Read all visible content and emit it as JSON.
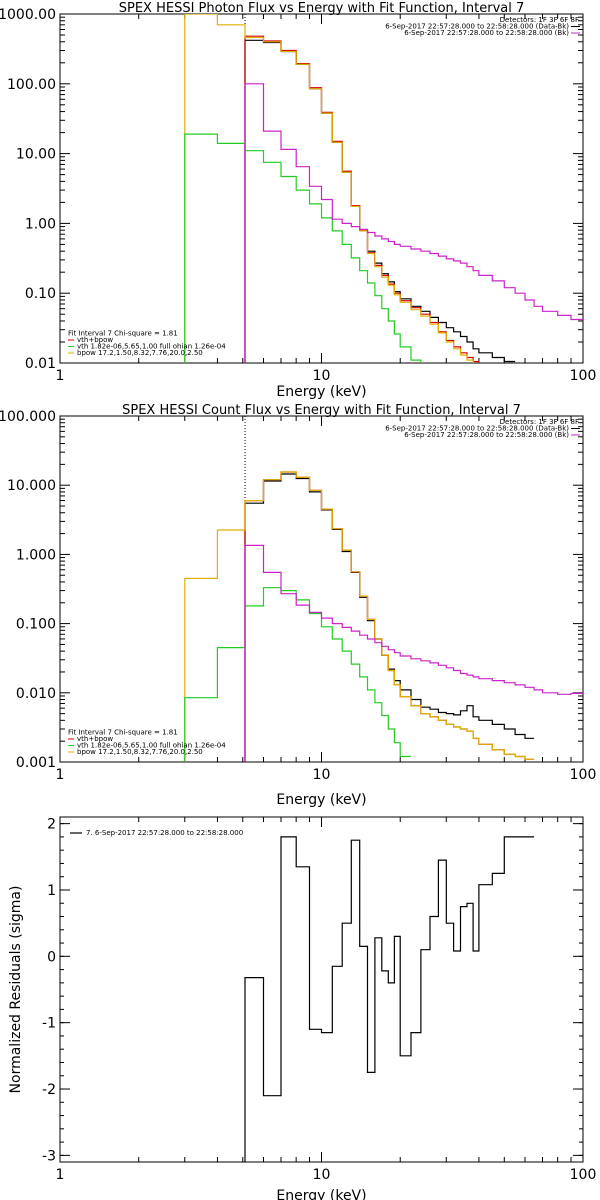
{
  "colors": {
    "data": "#000000",
    "fit": "#d40000",
    "vth": "#22cc22",
    "bpow": "#e0b000",
    "background": "#cc22cc"
  },
  "chart_data": [
    {
      "type": "line",
      "title": "SPEX HESSI Photon Flux vs Energy with Fit Function, Interval 7",
      "xlabel": "Energy (keV)",
      "ylabel": "",
      "xscale": "log",
      "yscale": "log",
      "xlim": [
        1,
        100
      ],
      "ylim": [
        0.01,
        1000
      ],
      "xticks": [
        {
          "v": 1,
          "label": "1"
        },
        {
          "v": 10,
          "label": "10"
        },
        {
          "v": 100,
          "label": "100"
        }
      ],
      "yticks": [
        {
          "v": 1000,
          "label": "1000.00"
        },
        {
          "v": 100,
          "label": "100.00"
        },
        {
          "v": 10,
          "label": "10.00"
        },
        {
          "v": 1,
          "label": "1.00"
        },
        {
          "v": 0.1,
          "label": "0.10"
        },
        {
          "v": 0.01,
          "label": "0.01"
        }
      ],
      "vline": 5.1,
      "legend_top": [
        {
          "text": "Detectors: 1F 3F 6F 8F",
          "color": ""
        },
        {
          "text": "6-Sep-2017 22:57:28.000 to 22:58:28.000 (Data-Bk)",
          "color": "#000000"
        },
        {
          "text": "6-Sep-2017 22:57:28.000 to 22:58:28.000 (Bk)",
          "color": "#cc22cc"
        }
      ],
      "legend_bottom": [
        {
          "text": "Fit Interval 7   Chi-square = 1.81",
          "color": ""
        },
        {
          "text": "vth+bpow",
          "color": "#d40000"
        },
        {
          "text": "vth 1.82e-06,5.65,1.00   full ohian 1.26e-04",
          "color": "#22cc22"
        },
        {
          "text": "bpow 17.2,1.50,8.32,7.76,20.0,2.50",
          "color": "#e0b000"
        }
      ],
      "edges": [
        3,
        4,
        5.1,
        6,
        7,
        8,
        9,
        10,
        11,
        12,
        13,
        14,
        15,
        16,
        17,
        18,
        19,
        20,
        22,
        24,
        26,
        28,
        30,
        32,
        34,
        36,
        38,
        40,
        45,
        50,
        55,
        60,
        65,
        70,
        80,
        90,
        100
      ],
      "series": [
        {
          "key": "data",
          "color": "#000000",
          "start": 5.1,
          "values": [
            420,
            390,
            290,
            190,
            85,
            38,
            14.5,
            5.4,
            1.75,
            0.78,
            0.4,
            0.27,
            0.19,
            0.145,
            0.105,
            0.083,
            0.065,
            0.055,
            0.045,
            0.038,
            0.032,
            0.028,
            0.024,
            0.02,
            0.016,
            0.014,
            0.012,
            0.0105
          ]
        },
        {
          "key": "fit",
          "color": "#d40000",
          "start": 5.1,
          "values": [
            480,
            410,
            300,
            195,
            88,
            39,
            15,
            5.6,
            1.8,
            0.8,
            0.38,
            0.25,
            0.18,
            0.135,
            0.1,
            0.078,
            0.062,
            0.05,
            0.038,
            0.028,
            0.021,
            0.017,
            0.014,
            0.012,
            0.0105,
            0.009,
            0.008,
            0.007
          ]
        },
        {
          "key": "bpow",
          "color": "#e0b000",
          "start": 3,
          "values": [
            1000,
            700,
            460,
            400,
            290,
            190,
            85,
            38,
            14.5,
            5.4,
            1.75,
            0.78,
            0.37,
            0.24,
            0.17,
            0.13,
            0.095,
            0.074,
            0.058,
            0.047,
            0.036,
            0.027,
            0.02,
            0.016,
            0.013,
            0.011,
            0.0095,
            0.0082,
            0.0072,
            0.0063
          ]
        },
        {
          "key": "vth",
          "color": "#22cc22",
          "start": 3,
          "values": [
            19,
            14,
            11,
            7.5,
            4.7,
            3,
            1.9,
            1.2,
            0.78,
            0.5,
            0.32,
            0.21,
            0.14,
            0.092,
            0.06,
            0.04,
            0.026,
            0.017,
            0.011,
            0.007
          ]
        },
        {
          "key": "background",
          "color": "#cc22cc",
          "start": 5.1,
          "values": [
            100,
            21,
            11.5,
            6.5,
            3.4,
            2.2,
            1.15,
            1.0,
            0.9,
            0.82,
            0.74,
            0.66,
            0.6,
            0.55,
            0.5,
            0.47,
            0.43,
            0.4,
            0.37,
            0.34,
            0.31,
            0.29,
            0.27,
            0.24,
            0.21,
            0.18,
            0.15,
            0.12,
            0.1,
            0.08,
            0.065,
            0.055,
            0.048,
            0.042
          ]
        }
      ]
    },
    {
      "type": "line",
      "title": "SPEX HESSI Count Flux vs Energy with Fit Function, Interval 7",
      "xlabel": "Energy (keV)",
      "ylabel": "",
      "xscale": "log",
      "yscale": "log",
      "xlim": [
        1,
        100
      ],
      "ylim": [
        0.001,
        100
      ],
      "xticks": [
        {
          "v": 1,
          "label": "1"
        },
        {
          "v": 10,
          "label": "10"
        },
        {
          "v": 100,
          "label": "100"
        }
      ],
      "yticks": [
        {
          "v": 100,
          "label": "100.000"
        },
        {
          "v": 10,
          "label": "10.000"
        },
        {
          "v": 1,
          "label": "1.000"
        },
        {
          "v": 0.1,
          "label": "0.100"
        },
        {
          "v": 0.01,
          "label": "0.010"
        },
        {
          "v": 0.001,
          "label": "0.001"
        }
      ],
      "vline": 5.1,
      "legend_top": [
        {
          "text": "Detectors: 1F 3F 6F 8F",
          "color": ""
        },
        {
          "text": "6-Sep-2017 22:57:28.000 to 22:58:28.000 (Data-Bk)",
          "color": "#000000"
        },
        {
          "text": "6-Sep-2017 22:57:28.000 to 22:58:28.000 (Bk)",
          "color": "#cc22cc"
        }
      ],
      "legend_bottom": [
        {
          "text": "Fit Interval 7   Chi-square = 1.81",
          "color": ""
        },
        {
          "text": "vth+bpow",
          "color": "#d40000"
        },
        {
          "text": "vth 1.82e-06,5.65,1.00   full ohian 1.26e-04",
          "color": "#22cc22"
        },
        {
          "text": "bpow 17.2,1.50,8.32,7.76,20.0,2.50",
          "color": "#e0b000"
        }
      ],
      "edges": [
        3,
        4,
        5.1,
        6,
        7,
        8,
        9,
        10,
        11,
        12,
        13,
        14,
        15,
        16,
        17,
        18,
        19,
        20,
        22,
        24,
        26,
        28,
        30,
        32,
        34,
        36,
        38,
        40,
        45,
        50,
        55,
        60,
        65,
        70,
        80,
        90,
        100
      ],
      "series": [
        {
          "key": "data",
          "color": "#000000",
          "start": 5.1,
          "values": [
            5.5,
            11.5,
            14.5,
            12.5,
            8,
            4.4,
            2.3,
            1.1,
            0.55,
            0.24,
            0.11,
            0.06,
            0.035,
            0.022,
            0.015,
            0.011,
            0.008,
            0.0062,
            0.0058,
            0.0052,
            0.005,
            0.0048,
            0.0055,
            0.0065,
            0.0045,
            0.004,
            0.0035,
            0.003,
            0.0025,
            0.0022
          ]
        },
        {
          "key": "fit",
          "color": "#d40000",
          "start": 5.1,
          "values": [
            6,
            12,
            15.5,
            13,
            8.4,
            4.5,
            2.35,
            1.15,
            0.56,
            0.25,
            0.115,
            0.06,
            0.035,
            0.021,
            0.013,
            0.0088,
            0.0065,
            0.005,
            0.0045,
            0.004,
            0.0035,
            0.0032,
            0.003,
            0.0028,
            0.0022,
            0.0018,
            0.0015,
            0.0013,
            0.0012,
            0.0011
          ]
        },
        {
          "key": "bpow",
          "color": "#e0b000",
          "start": 3,
          "values": [
            0.45,
            2.25,
            6,
            12,
            15.5,
            13,
            8.4,
            4.5,
            2.35,
            1.15,
            0.56,
            0.25,
            0.115,
            0.06,
            0.035,
            0.021,
            0.013,
            0.0088,
            0.0065,
            0.005,
            0.0045,
            0.004,
            0.0035,
            0.0032,
            0.003,
            0.0028,
            0.0022,
            0.0018,
            0.0015,
            0.0013,
            0.0012,
            0.0011
          ]
        },
        {
          "key": "vth",
          "color": "#22cc22",
          "start": 3,
          "values": [
            0.0085,
            0.045,
            0.18,
            0.33,
            0.3,
            0.22,
            0.14,
            0.09,
            0.06,
            0.04,
            0.026,
            0.017,
            0.011,
            0.0072,
            0.0047,
            0.003,
            0.0019,
            0.0012
          ]
        },
        {
          "key": "background",
          "color": "#cc22cc",
          "start": 5.1,
          "values": [
            1.35,
            0.55,
            0.27,
            0.185,
            0.145,
            0.12,
            0.1,
            0.088,
            0.078,
            0.068,
            0.06,
            0.053,
            0.047,
            0.042,
            0.038,
            0.034,
            0.031,
            0.029,
            0.027,
            0.025,
            0.023,
            0.021,
            0.019,
            0.018,
            0.017,
            0.016,
            0.015,
            0.014,
            0.013,
            0.012,
            0.011,
            0.01,
            0.0095,
            0.0098
          ]
        }
      ]
    },
    {
      "type": "line",
      "title": "",
      "xlabel": "Energy (keV)",
      "ylabel": "Normalized Residuals (sigma)",
      "xscale": "log",
      "yscale": "linear",
      "xlim": [
        1,
        100
      ],
      "ylim": [
        -3.1,
        2.1
      ],
      "xticks": [
        {
          "v": 1,
          "label": "1"
        },
        {
          "v": 10,
          "label": "10"
        },
        {
          "v": 100,
          "label": "100"
        }
      ],
      "yticks": [
        {
          "v": 2,
          "label": "2"
        },
        {
          "v": 1,
          "label": "1"
        },
        {
          "v": 0,
          "label": "0"
        },
        {
          "v": -1,
          "label": "-1"
        },
        {
          "v": -2,
          "label": "-2"
        },
        {
          "v": -3,
          "label": "-3"
        }
      ],
      "legend_top": [
        {
          "text": "7.  6-Sep-2017 22:57:28.000 to 22:58:28.000",
          "color": "#000000"
        }
      ],
      "edges": [
        5.1,
        6,
        7,
        8,
        9,
        10,
        11,
        12,
        13,
        14,
        15,
        16,
        17,
        18,
        19,
        20,
        22,
        24,
        26,
        28,
        30,
        32,
        34,
        36,
        38,
        40,
        45,
        50,
        55,
        60,
        65,
        70,
        80,
        90,
        100
      ],
      "series": [
        {
          "key": "residuals",
          "color": "#000000",
          "start": 5.1,
          "values": [
            -0.32,
            -2.1,
            1.8,
            1.35,
            -1.1,
            -1.15,
            -0.15,
            0.5,
            1.75,
            0.15,
            -1.75,
            0.28,
            -0.22,
            -0.4,
            0.3,
            -1.5,
            -1.15,
            0.1,
            0.6,
            1.45,
            0.5,
            0.08,
            0.75,
            0.8,
            0.08,
            1.08,
            1.25,
            1.8,
            1.8,
            1.8
          ]
        }
      ]
    }
  ]
}
